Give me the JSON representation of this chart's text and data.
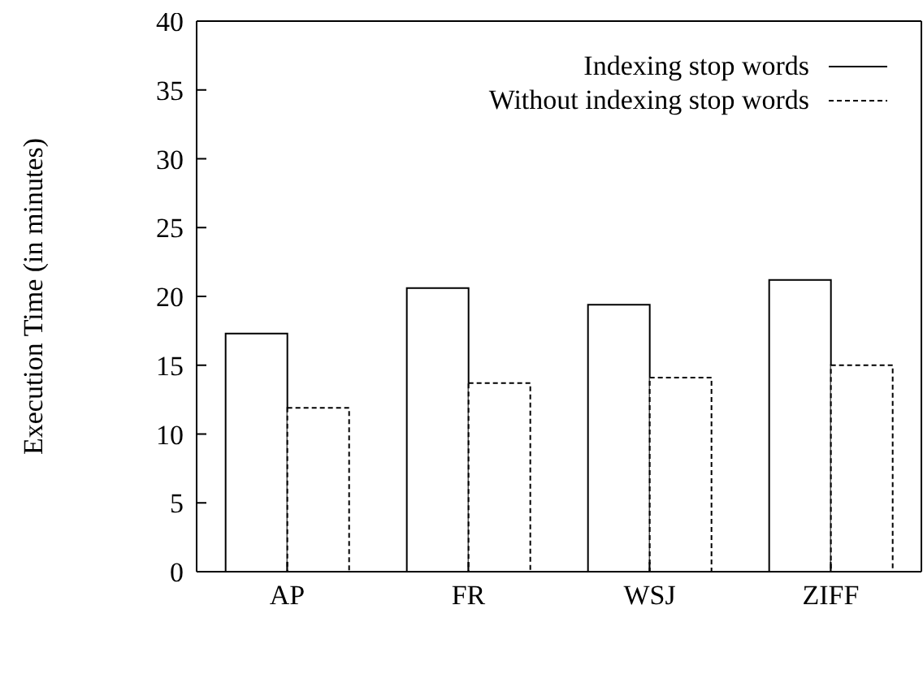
{
  "chart_data": {
    "type": "bar",
    "categories": [
      "AP",
      "FR",
      "WSJ",
      "ZIFF"
    ],
    "ylabel": "Execution Time (in minutes)",
    "ylim": [
      0,
      40
    ],
    "yticks": [
      0,
      5,
      10,
      15,
      20,
      25,
      30,
      35,
      40
    ],
    "legend": "top right",
    "grid": false,
    "series": [
      {
        "name": "Indexing stop words",
        "color": "#000000",
        "line_style": "solid",
        "values": [
          17.3,
          20.6,
          19.4,
          21.2
        ]
      },
      {
        "name": "Without indexing stop words",
        "color": "#000000",
        "line_style": "dashed",
        "values": [
          11.9,
          13.7,
          14.1,
          15
        ]
      }
    ]
  }
}
